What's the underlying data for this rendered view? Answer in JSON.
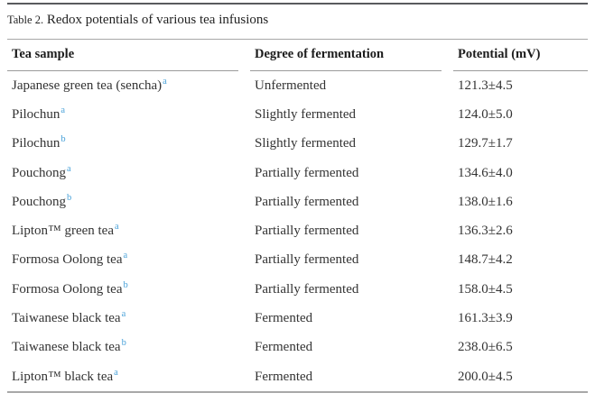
{
  "title": {
    "label": "Table 2.",
    "caption": "Redox potentials of various tea infusions"
  },
  "columns": [
    "Tea sample",
    "Degree of fermentation",
    "Potential (mV)"
  ],
  "rows": [
    {
      "sample": "Japanese green tea (sencha)",
      "marker": "a",
      "fermentation": "Unfermented",
      "potential": "121.3±4.5"
    },
    {
      "sample": "Pilochun",
      "marker": "a",
      "fermentation": "Slightly fermented",
      "potential": "124.0±5.0"
    },
    {
      "sample": "Pilochun",
      "marker": "b",
      "fermentation": "Slightly fermented",
      "potential": "129.7±1.7"
    },
    {
      "sample": "Pouchong",
      "marker": "a",
      "fermentation": "Partially fermented",
      "potential": "134.6±4.0"
    },
    {
      "sample": "Pouchong",
      "marker": "b",
      "fermentation": "Partially fermented",
      "potential": "138.0±1.6"
    },
    {
      "sample": "Lipton™ green tea",
      "marker": "a",
      "fermentation": "Partially fermented",
      "potential": "136.3±2.6"
    },
    {
      "sample": "Formosa Oolong tea",
      "marker": "a",
      "fermentation": "Partially fermented",
      "potential": "148.7±4.2"
    },
    {
      "sample": "Formosa Oolong tea",
      "marker": "b",
      "fermentation": "Partially fermented",
      "potential": "158.0±4.5"
    },
    {
      "sample": "Taiwanese black tea",
      "marker": "a",
      "fermentation": "Fermented",
      "potential": "161.3±3.9"
    },
    {
      "sample": "Taiwanese black tea",
      "marker": "b",
      "fermentation": "Fermented",
      "potential": "238.0±6.5"
    },
    {
      "sample": "Lipton™ black tea",
      "marker": "a",
      "fermentation": "Fermented",
      "potential": "200.0±4.5"
    }
  ],
  "colors": {
    "footnote_marker_blue": "#4aa2d9",
    "top_rule": "#595a5e",
    "gray_rule": "#a8a8a8",
    "header_underline": "#9a9a9a",
    "body_text": "#333333"
  },
  "chart_data": {
    "type": "table",
    "title": "Table 2. Redox potentials of various tea infusions",
    "columns": [
      "Tea sample",
      "Degree of fermentation",
      "Potential (mV)"
    ],
    "rows": [
      [
        "Japanese green tea (sencha)a",
        "Unfermented",
        "121.3±4.5"
      ],
      [
        "Pilochuna",
        "Slightly fermented",
        "124.0±5.0"
      ],
      [
        "Pilochunb",
        "Slightly fermented",
        "129.7±1.7"
      ],
      [
        "Pouchonga",
        "Partially fermented",
        "134.6±4.0"
      ],
      [
        "Pouchongb",
        "Partially fermented",
        "138.0±1.6"
      ],
      [
        "Lipton™ green teaa",
        "Partially fermented",
        "136.3±2.6"
      ],
      [
        "Formosa Oolong teaa",
        "Partially fermented",
        "148.7±4.2"
      ],
      [
        "Formosa Oolong teab",
        "Partially fermented",
        "158.0±4.5"
      ],
      [
        "Taiwanese black teaa",
        "Fermented",
        "161.3±3.9"
      ],
      [
        "Taiwanese black teab",
        "Fermented",
        "238.0±6.5"
      ],
      [
        "Lipton™ black teaa",
        "Fermented",
        "200.0±4.5"
      ]
    ]
  }
}
